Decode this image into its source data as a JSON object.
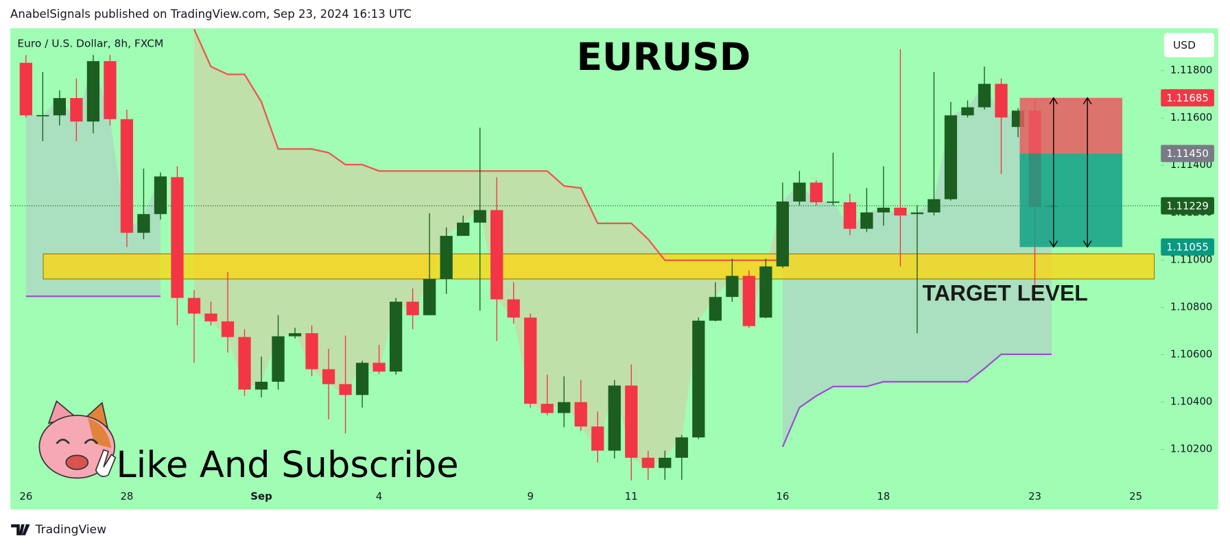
{
  "header": "AnabelSignals published on TradingView.com, Sep 23, 2024 16:13 UTC",
  "footer": "TradingView",
  "chart_data": {
    "type": "candlestick",
    "title": "EURUSD",
    "subtitle": "Euro / U.S. Dollar, 8h, FXCM",
    "currency": "USD",
    "caption": "Like And Subscribe",
    "up_color": "#1b5e20",
    "down_color": "#f23645",
    "open": [
      1.11833,
      1.11611,
      1.11611,
      1.11684,
      1.11585,
      1.1184,
      1.11595,
      1.11115,
      1.11194,
      1.1135,
      1.1084,
      1.10774,
      1.10741,
      1.10675,
      1.10453,
      1.10486,
      1.10678,
      1.10691,
      1.10539,
      1.10476,
      1.1043,
      1.10566,
      1.10529,
      1.10824,
      1.10767,
      1.1092,
      1.11102,
      1.11158,
      1.11211,
      1.10834,
      1.10757,
      1.10393,
      1.10354,
      1.104,
      1.10297,
      1.10195,
      1.1047,
      1.10165,
      1.10122,
      1.10165,
      1.10251,
      1.10744,
      1.10844,
      1.10933,
      1.10757,
      1.10973,
      1.11247,
      1.11327,
      1.11244,
      1.11244,
      1.11132,
      1.11201,
      1.11221,
      1.11194,
      1.11201,
      1.11257,
      1.11611,
      1.11645,
      1.11744,
      1.11562,
      1.11631,
      1.11227
    ],
    "high": [
      1.11866,
      1.11794,
      1.11717,
      1.11767,
      1.11866,
      1.11866,
      1.11635,
      1.11386,
      1.1137,
      1.11396,
      1.10873,
      1.10824,
      1.10949,
      1.10708,
      1.10592,
      1.10767,
      1.10714,
      1.10724,
      1.10625,
      1.10681,
      1.10575,
      1.10642,
      1.1084,
      1.1088,
      1.11198,
      1.11138,
      1.11188,
      1.11559,
      1.1135,
      1.10906,
      1.10774,
      1.10516,
      1.10509,
      1.10493,
      1.1036,
      1.10493,
      1.10559,
      1.10195,
      1.10195,
      1.10261,
      1.10757,
      1.10906,
      1.11006,
      1.10956,
      1.11006,
      1.11327,
      1.11376,
      1.11337,
      1.11453,
      1.1128,
      1.11304,
      1.11396,
      1.1189,
      1.11231,
      1.11794,
      1.11668,
      1.11674,
      1.11817,
      1.11767,
      1.11641,
      1.11678,
      1.11235
    ],
    "low": [
      1.11602,
      1.11502,
      1.11568,
      1.11502,
      1.11535,
      1.11568,
      1.11055,
      1.11088,
      1.11171,
      1.10724,
      1.10566,
      1.10724,
      1.10609,
      1.10426,
      1.1042,
      1.10453,
      1.10668,
      1.10509,
      1.10327,
      1.10268,
      1.10377,
      1.10519,
      1.10516,
      1.10708,
      1.10774,
      1.10857,
      1.11105,
      1.10787,
      1.10658,
      1.10731,
      1.10377,
      1.10344,
      1.10294,
      1.10278,
      1.10145,
      1.10162,
      1.10069,
      1.10072,
      1.10072,
      1.10072,
      1.10244,
      1.10741,
      1.10824,
      1.10714,
      1.10754,
      1.10966,
      1.11231,
      1.11231,
      1.11231,
      1.11105,
      1.11118,
      1.11145,
      1.10973,
      1.10691,
      1.11188,
      1.11251,
      1.11602,
      1.11635,
      1.11363,
      1.11519,
      1.1089,
      1.1122
    ],
    "close": [
      1.11611,
      1.11612,
      1.11684,
      1.11585,
      1.1184,
      1.11595,
      1.11115,
      1.11194,
      1.11353,
      1.1084,
      1.10774,
      1.10741,
      1.10675,
      1.10453,
      1.10486,
      1.10678,
      1.10691,
      1.10539,
      1.10476,
      1.1043,
      1.10566,
      1.10529,
      1.10824,
      1.10767,
      1.1092,
      1.11102,
      1.11158,
      1.11211,
      1.10834,
      1.10757,
      1.10393,
      1.10354,
      1.104,
      1.10297,
      1.10195,
      1.1047,
      1.10165,
      1.10122,
      1.10165,
      1.10251,
      1.10744,
      1.10844,
      1.10933,
      1.10721,
      1.10973,
      1.11247,
      1.11327,
      1.11244,
      1.11247,
      1.11132,
      1.11201,
      1.11221,
      1.11188,
      1.11201,
      1.11257,
      1.11611,
      1.11645,
      1.11744,
      1.11602,
      1.11631,
      1.11224,
      1.11229
    ],
    "supertrend_upper": [
      null,
      null,
      null,
      null,
      null,
      null,
      null,
      null,
      null,
      null,
      1.11975,
      1.11817,
      1.11784,
      1.11784,
      1.11668,
      1.11469,
      1.11469,
      1.11469,
      1.11453,
      1.11403,
      1.11403,
      1.11376,
      1.11376,
      1.11376,
      1.11376,
      1.11376,
      1.11376,
      1.11376,
      1.11376,
      1.11376,
      1.11376,
      1.11376,
      1.11313,
      1.11304,
      1.11155,
      1.11155,
      1.11155,
      1.11088,
      1.10999,
      1.10999,
      1.10999,
      1.10999,
      1.10999,
      1.10999,
      1.10999,
      1.10999,
      null,
      null,
      null,
      null,
      null,
      null,
      null,
      null,
      null,
      null,
      null,
      null,
      null,
      null,
      null,
      null
    ],
    "supertrend_lower": [
      1.10847,
      1.10847,
      1.10847,
      1.10847,
      1.10847,
      1.10847,
      1.10847,
      1.10847,
      1.10847,
      null,
      null,
      null,
      null,
      null,
      null,
      null,
      null,
      null,
      null,
      null,
      null,
      null,
      null,
      null,
      null,
      null,
      null,
      null,
      null,
      null,
      null,
      null,
      null,
      null,
      null,
      null,
      null,
      null,
      null,
      null,
      null,
      null,
      null,
      null,
      null,
      1.10211,
      1.10377,
      1.10426,
      1.10466,
      1.10466,
      1.10466,
      1.10486,
      1.10486,
      1.10486,
      1.10486,
      1.10486,
      1.10486,
      1.10542,
      1.10602,
      1.10602,
      1.10602,
      1.10602
    ],
    "upper_color": "#f0544f",
    "lower_color": "#9c4fd0",
    "xlim": [
      -0.93,
      67.4
    ],
    "ylim": [
      1.09947,
      1.11979
    ],
    "xticks": [
      {
        "value": 0,
        "label": "26"
      },
      {
        "value": 6,
        "label": "28"
      },
      {
        "value": 14,
        "label": "Sep"
      },
      {
        "value": 21,
        "label": "4"
      },
      {
        "value": 30,
        "label": "9"
      },
      {
        "value": 36,
        "label": "11"
      },
      {
        "value": 45,
        "label": "16"
      },
      {
        "value": 51,
        "label": "18"
      },
      {
        "value": 60,
        "label": "23"
      },
      {
        "value": 66,
        "label": "25"
      }
    ],
    "yticks": [
      {
        "value": 1.118,
        "label": "1.11800"
      },
      {
        "value": 1.116,
        "label": "1.11600"
      },
      {
        "value": 1.114,
        "label": "1.11400"
      },
      {
        "value": 1.112,
        "label": "1.11200"
      },
      {
        "value": 1.11,
        "label": "1.11000"
      },
      {
        "value": 1.108,
        "label": "1.10800"
      },
      {
        "value": 1.106,
        "label": "1.10600"
      },
      {
        "value": 1.104,
        "label": "1.10400"
      },
      {
        "value": 1.102,
        "label": "1.10200"
      }
    ],
    "zone": {
      "label": "TARGET LEVEL",
      "top": 1.11026,
      "bottom": 1.1092,
      "x": [
        1.03,
        67.1
      ],
      "color": "#ffd60a"
    },
    "position": {
      "x": [
        59.1,
        65.2
      ],
      "stop": 1.11685,
      "entry": 1.1145,
      "target": 1.11055,
      "stop_color": "#e65a5f",
      "target_color": "#13a085"
    },
    "price_labels": [
      {
        "value": 1.11685,
        "label": "1.11685",
        "color": "#f23645"
      },
      {
        "value": 1.1145,
        "label": "1.11450",
        "color": "#787b86"
      },
      {
        "value": 1.11229,
        "label": "1.11229",
        "color": "#1b5e20",
        "line": "dotted"
      },
      {
        "value": 1.11055,
        "label": "1.11055",
        "color": "#089981"
      }
    ]
  }
}
